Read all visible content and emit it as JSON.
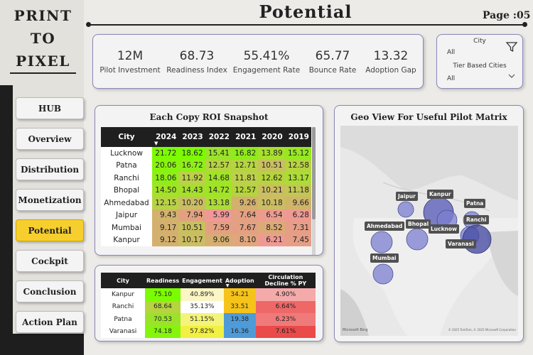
{
  "logo": {
    "lines": [
      "PRINT",
      "TO",
      "PIXEL"
    ]
  },
  "page": {
    "title": "Potential",
    "page_number": "Page :05"
  },
  "nav": [
    "HUB",
    "Overview",
    "Distribution",
    "Monetization",
    "Potential",
    "Cockpit",
    "Conclusion",
    "Action Plan"
  ],
  "nav_active": "Potential",
  "kpis": [
    {
      "value": "12M",
      "label": "Pilot Investment"
    },
    {
      "value": "68.73",
      "label": "Readiness Index"
    },
    {
      "value": "55.41%",
      "label": "Engagement Rate"
    },
    {
      "value": "65.77",
      "label": "Bounce Rate"
    },
    {
      "value": "13.32",
      "label": "Adoption Gap"
    }
  ],
  "filters": {
    "city_label": "City",
    "city_value": "All",
    "tier_label": "Tier Based Cities",
    "tier_value": "All",
    "icon": "filter-icon"
  },
  "roi": {
    "title": "Each Copy ROI Snapshot",
    "columns": [
      "City",
      "2024",
      "2023",
      "2022",
      "2021",
      "2020",
      "2019"
    ],
    "rows": [
      {
        "city": "Lucknow",
        "values": [
          "21.72",
          "18.62",
          "15.41",
          "16.82",
          "13.89",
          "15.12"
        ]
      },
      {
        "city": "Patna",
        "values": [
          "20.06",
          "16.72",
          "12.57",
          "12.71",
          "10.51",
          "12.58"
        ]
      },
      {
        "city": "Ranchi",
        "values": [
          "18.06",
          "11.92",
          "14.68",
          "11.81",
          "12.62",
          "13.17"
        ]
      },
      {
        "city": "Bhopal",
        "values": [
          "14.50",
          "14.43",
          "14.72",
          "12.57",
          "10.21",
          "11.18"
        ]
      },
      {
        "city": "Ahmedabad",
        "values": [
          "12.15",
          "10.20",
          "13.18",
          "9.26",
          "10.18",
          "9.66"
        ]
      },
      {
        "city": "Jaipur",
        "values": [
          "9.43",
          "7.94",
          "5.99",
          "7.64",
          "6.54",
          "6.28"
        ]
      },
      {
        "city": "Mumbai",
        "values": [
          "9.17",
          "10.51",
          "7.59",
          "7.67",
          "8.52",
          "7.31"
        ]
      },
      {
        "city": "Kanpur",
        "values": [
          "9.12",
          "10.17",
          "9.06",
          "8.10",
          "6.21",
          "7.45"
        ]
      }
    ]
  },
  "pilot": {
    "columns": [
      "City",
      "Readiness",
      "Engagement",
      "Adoption",
      "Circulation Decline % PY"
    ],
    "rows": [
      {
        "city": "Kanpur",
        "readiness": "75.10",
        "engagement": "40.89%",
        "adoption": "34.21",
        "decline": "4.90%"
      },
      {
        "city": "Ranchi",
        "readiness": "68.64",
        "engagement": "35.13%",
        "adoption": "33.51",
        "decline": "6.64%"
      },
      {
        "city": "Patna",
        "readiness": "70.53",
        "engagement": "51.15%",
        "adoption": "19.38",
        "decline": "6.23%"
      },
      {
        "city": "Varanasi",
        "readiness": "74.18",
        "engagement": "57.82%",
        "adoption": "16.36",
        "decline": "7.61%"
      }
    ]
  },
  "map": {
    "title": "Geo View For Useful Pilot Matrix",
    "cities": [
      "Jaipur",
      "Kanpur",
      "Patna",
      "Ranchi",
      "Ahmedabad",
      "Bhopal",
      "Lucknow",
      "Varanasi",
      "Mumbai"
    ],
    "brand": "Microsoft Bing",
    "copyright": "© 2025 TomTom, © 2025 Microsoft Corporation",
    "bubble_color": "#7b7fd0"
  }
}
